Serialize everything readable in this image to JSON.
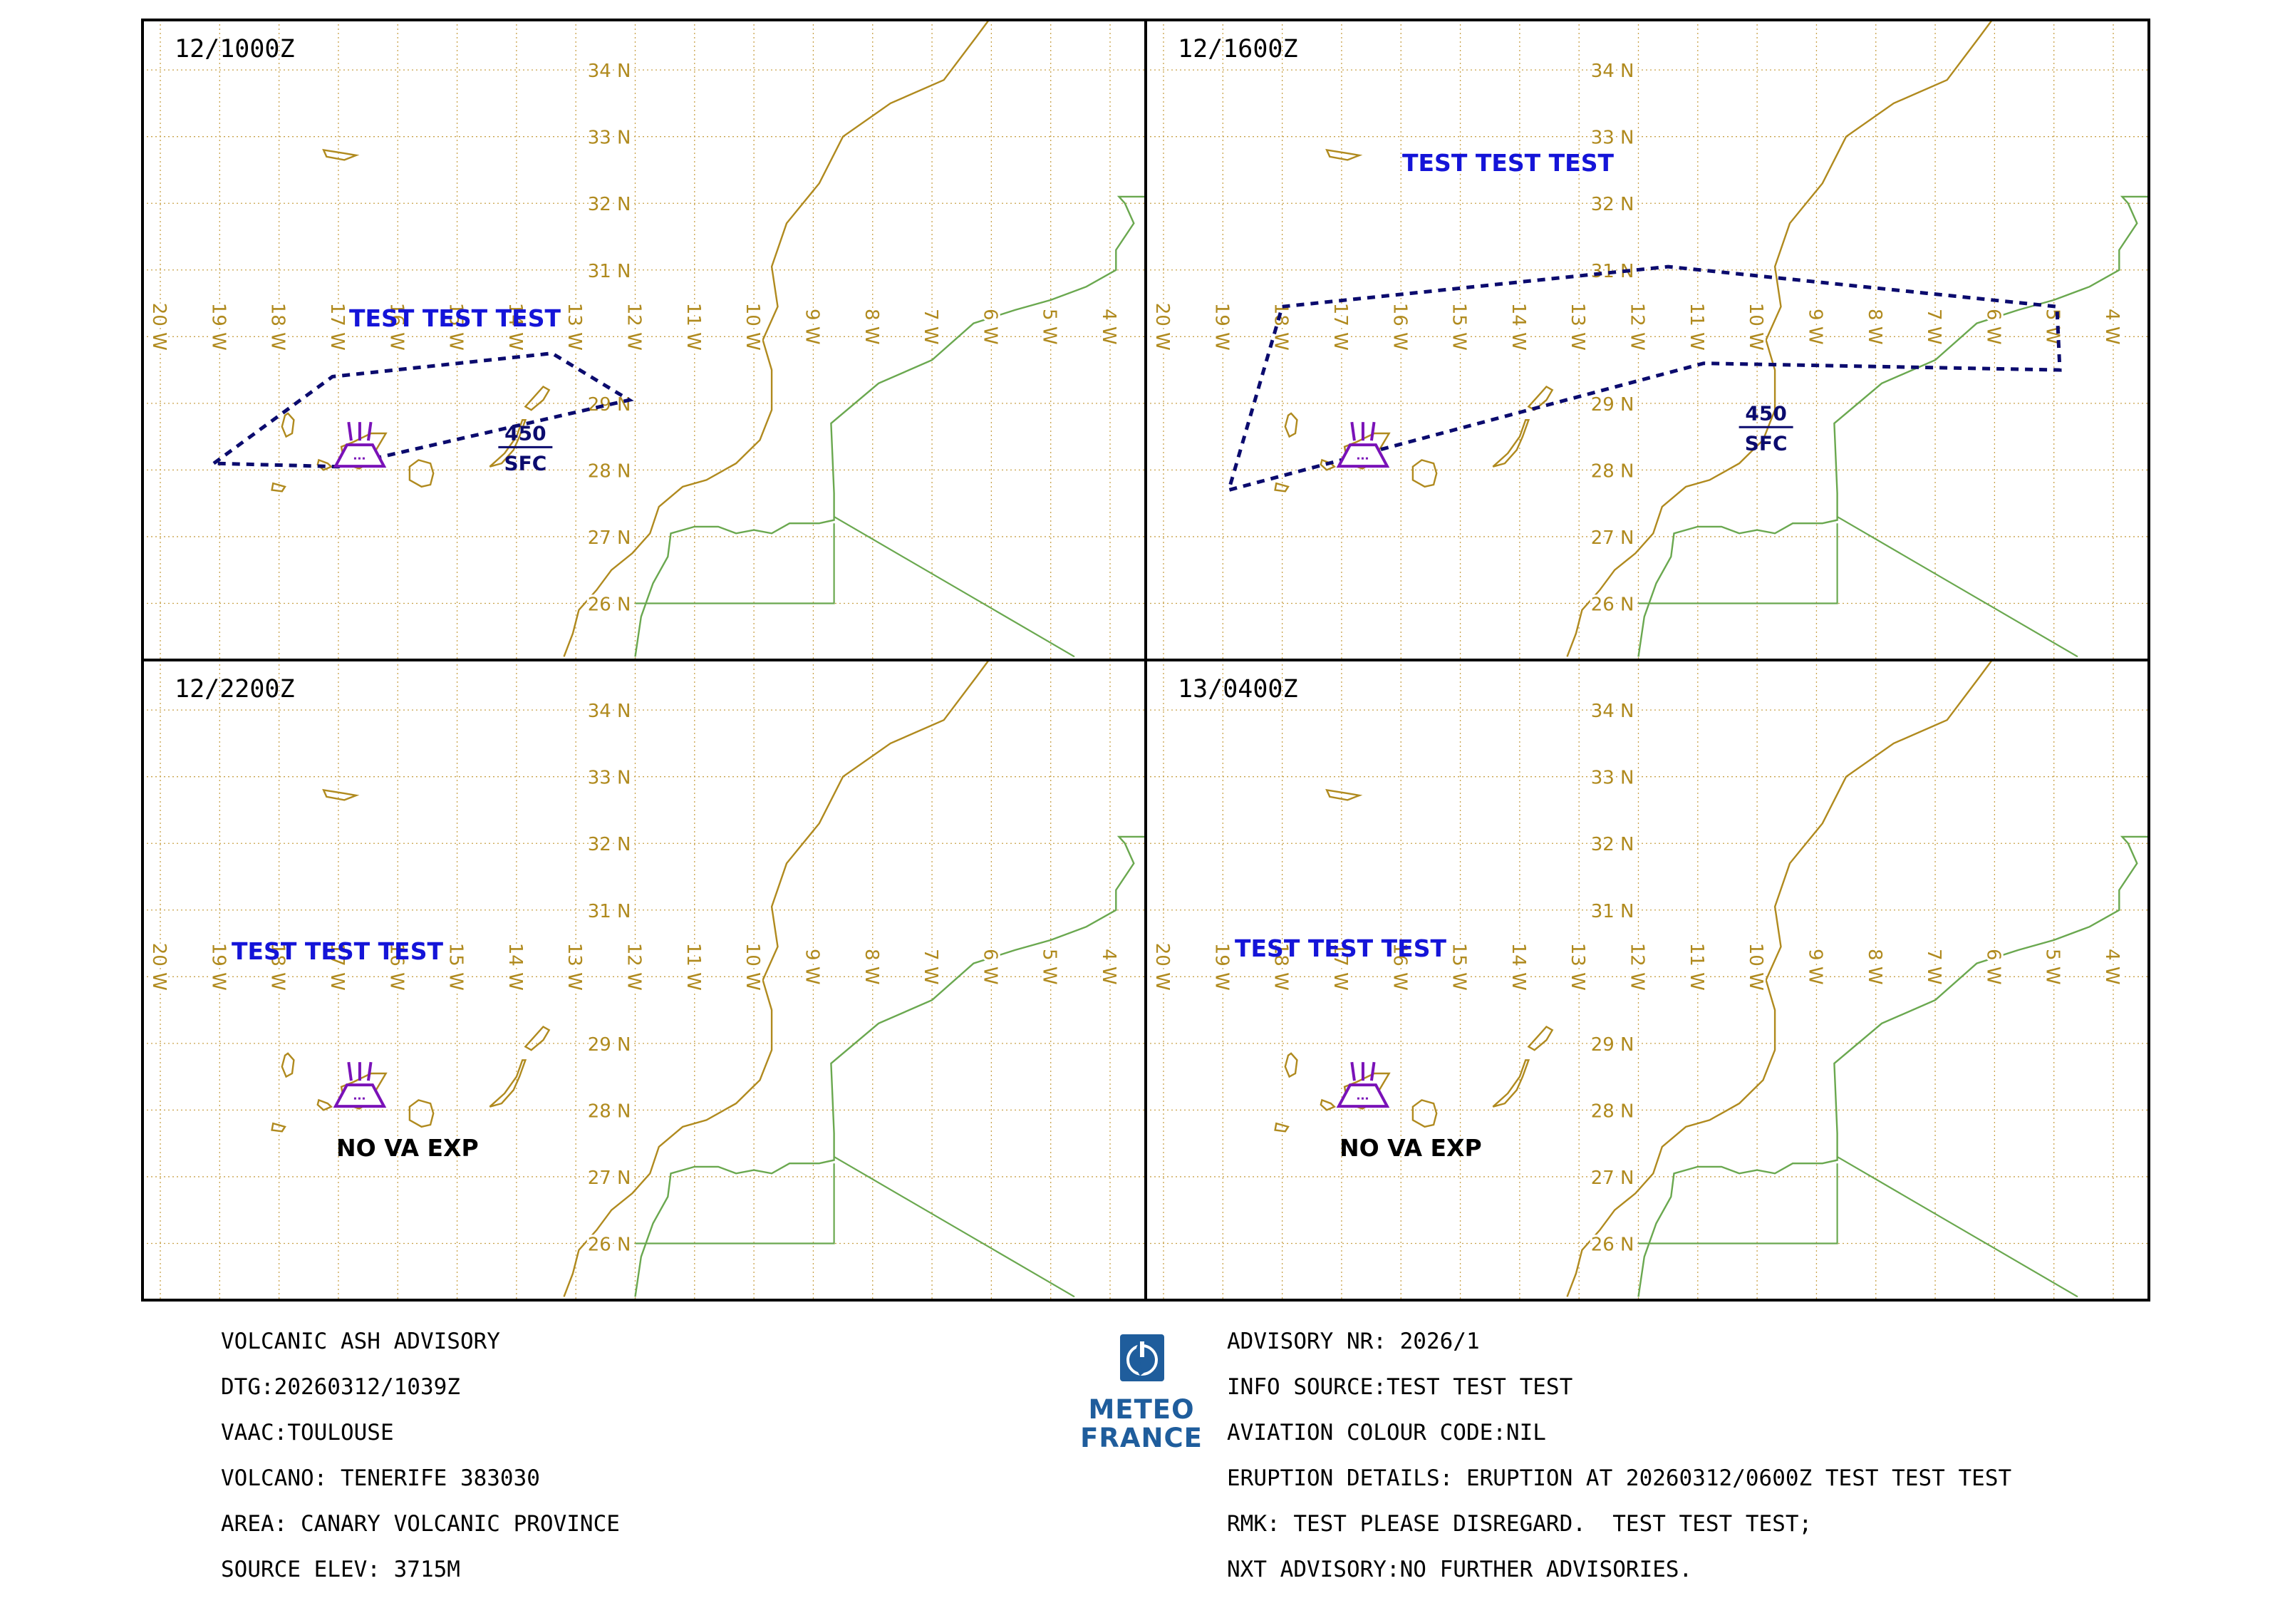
{
  "colors": {
    "grid": "#c9a24a",
    "grid_label": "#b08a1e",
    "coast": "#b08a1e",
    "fir_boundary": "#6aa84f",
    "ash_polygon": "#0b0b6e",
    "test_text": "#1414d8",
    "volcano_symbol": "#7a12b8",
    "frame": "#000000",
    "logo": "#1f5d9c"
  },
  "panels": [
    {
      "time": "12/1000Z",
      "test_text": "TEST TEST TEST",
      "ash_cloud": {
        "polygon": [
          [
            -19.1,
            28.1
          ],
          [
            -17.1,
            29.4
          ],
          [
            -13.4,
            29.75
          ],
          [
            -12.1,
            29.05
          ],
          [
            -17.0,
            28.05
          ]
        ],
        "top": "450",
        "base": "SFC"
      },
      "note": ""
    },
    {
      "time": "12/1600Z",
      "test_text": "TEST TEST TEST",
      "ash_cloud": {
        "polygon": [
          [
            -18.0,
            30.45
          ],
          [
            -11.5,
            31.05
          ],
          [
            -4.95,
            30.45
          ],
          [
            -4.9,
            29.5
          ],
          [
            -10.9,
            29.6
          ],
          [
            -18.9,
            27.7
          ]
        ],
        "top": "450",
        "base": "SFC"
      },
      "note": ""
    },
    {
      "time": "12/2200Z",
      "test_text": "TEST TEST TEST",
      "ash_cloud": null,
      "note": "NO VA EXP"
    },
    {
      "time": "13/0400Z",
      "test_text": "TEST TEST TEST",
      "ash_cloud": null,
      "note": "NO VA EXP"
    }
  ],
  "map": {
    "lat_labels": [
      "26 N",
      "27 N",
      "28 N",
      "29 N",
      "31 N",
      "32 N",
      "33 N",
      "34 N"
    ],
    "lon_labels": [
      "20 W",
      "19 W",
      "18 W",
      "17 W",
      "16 W",
      "15 W",
      "14 W",
      "13 W",
      "12 W",
      "11 W",
      "10 W",
      "9 W",
      "8 W",
      "7 W",
      "6 W",
      "5 W",
      "4 W"
    ],
    "lat_range": [
      25.15,
      34.75
    ],
    "lon_range": [
      -20.3,
      -3.4
    ],
    "volcano": {
      "name": "TENERIFE",
      "lon": -16.64,
      "lat": 28.27
    }
  },
  "advisory_left": [
    "VOLCANIC ASH ADVISORY",
    "DTG:20260312/1039Z",
    "VAAC:TOULOUSE",
    "VOLCANO: TENERIFE 383030",
    "AREA: CANARY VOLCANIC PROVINCE",
    "SOURCE ELEV: 3715M"
  ],
  "advisory_right": [
    "ADVISORY NR: 2026/1",
    "INFO SOURCE:TEST TEST TEST",
    "AVIATION COLOUR CODE:NIL",
    "ERUPTION DETAILS: ERUPTION AT 20260312/0600Z TEST TEST TEST",
    "RMK: TEST PLEASE DISREGARD.  TEST TEST TEST;",
    "NXT ADVISORY:NO FURTHER ADVISORIES."
  ],
  "logo": {
    "line1": "METEO",
    "line2": "FRANCE"
  }
}
